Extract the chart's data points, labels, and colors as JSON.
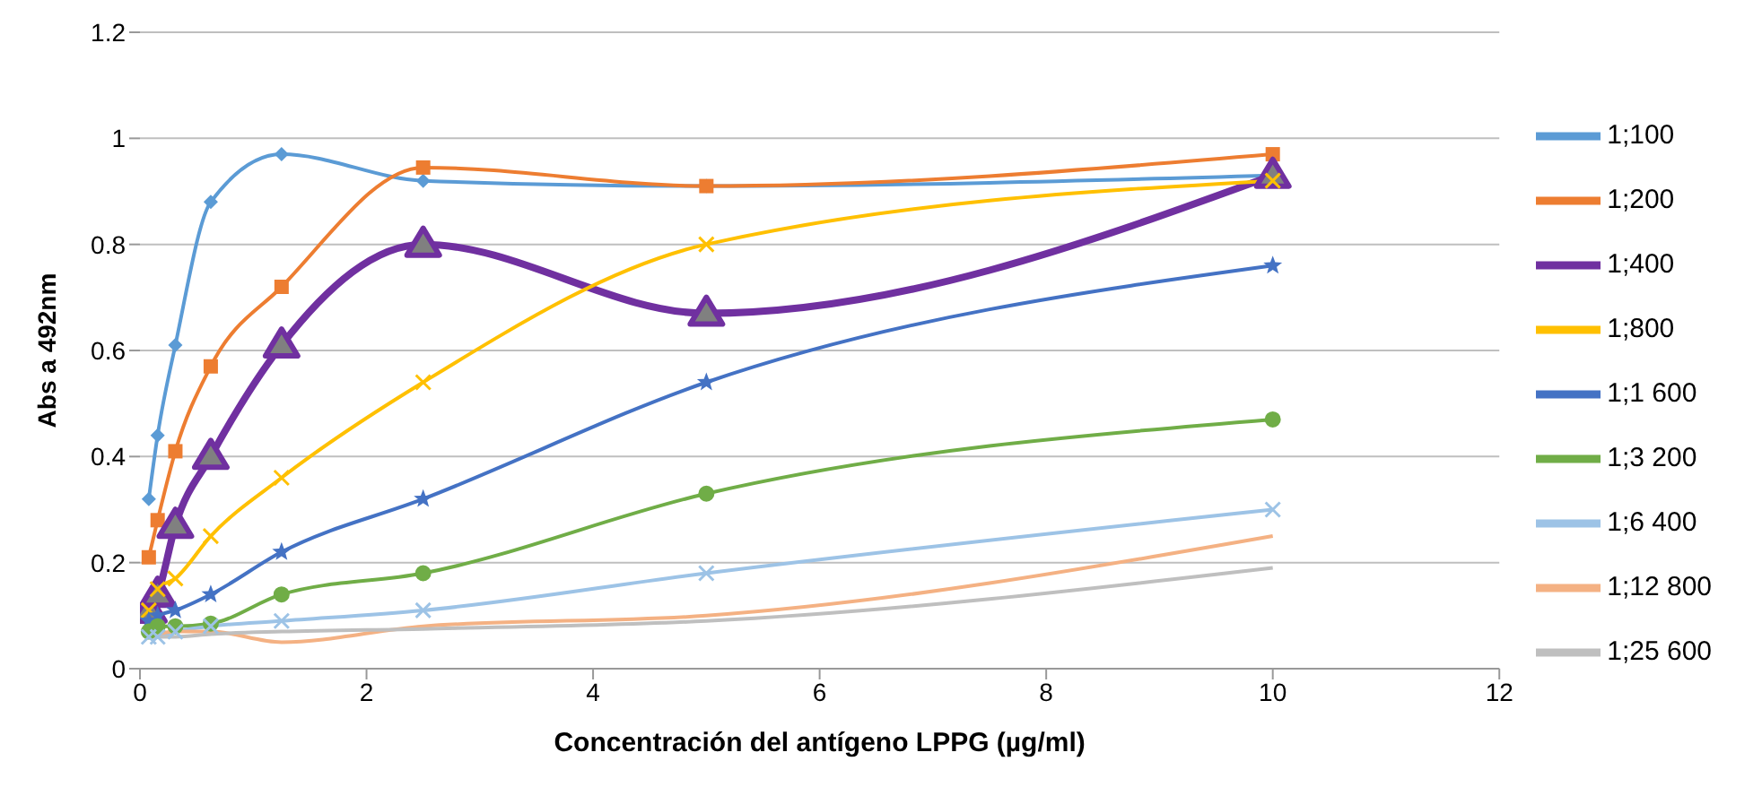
{
  "chart_data": {
    "type": "line",
    "xlabel": "Concentración del antígeno LPPG (µg/ml)",
    "ylabel": "Abs a 492nm",
    "x": [
      0.078,
      0.156,
      0.3125,
      0.625,
      1.25,
      2.5,
      5,
      10
    ],
    "xlim": [
      0,
      12
    ],
    "xticks": [
      0,
      2,
      4,
      6,
      8,
      10,
      12
    ],
    "ylim": [
      0,
      1.2
    ],
    "yticks": [
      0,
      0.2,
      0.4,
      0.6,
      0.8,
      1,
      1.2
    ],
    "grid": "y",
    "legend": "right",
    "line_style": "solid",
    "series": [
      {
        "name": "1;100",
        "color": "#5b9bd5",
        "marker": "diamond",
        "values": [
          0.32,
          0.44,
          0.61,
          0.88,
          0.97,
          0.92,
          0.91,
          0.93
        ]
      },
      {
        "name": "1;200",
        "color": "#ed7d31",
        "marker": "square",
        "values": [
          0.21,
          0.28,
          0.41,
          0.57,
          0.72,
          0.945,
          0.91,
          0.97
        ]
      },
      {
        "name": "1;400",
        "color": "#7030a0",
        "marker": "triangle",
        "values": [
          0.11,
          0.14,
          0.27,
          0.4,
          0.61,
          0.8,
          0.67,
          0.93
        ]
      },
      {
        "name": "1;800",
        "color": "#ffc000",
        "marker": "cross",
        "values": [
          0.11,
          0.15,
          0.17,
          0.25,
          0.36,
          0.54,
          0.8,
          0.92
        ]
      },
      {
        "name": "1;1 600",
        "color": "#4472c4",
        "marker": "star",
        "values": [
          0.09,
          0.1,
          0.11,
          0.14,
          0.22,
          0.32,
          0.54,
          0.76
        ]
      },
      {
        "name": "1;3 200",
        "color": "#70ad47",
        "marker": "circle",
        "values": [
          0.07,
          0.08,
          0.08,
          0.085,
          0.14,
          0.18,
          0.33,
          0.47
        ]
      },
      {
        "name": "1;6 400",
        "color": "#9dc3e6",
        "marker": "cross",
        "values": [
          0.06,
          0.06,
          0.07,
          0.08,
          0.09,
          0.11,
          0.18,
          0.3
        ]
      },
      {
        "name": "1;12 800",
        "color": "#f4b183",
        "marker": "none",
        "values": [
          0.06,
          0.065,
          0.07,
          0.07,
          0.05,
          0.08,
          0.1,
          0.25
        ]
      },
      {
        "name": "1;25 600",
        "color": "#bfbfbf",
        "marker": "none",
        "values": [
          0.06,
          0.06,
          0.06,
          0.065,
          0.07,
          0.075,
          0.09,
          0.19
        ]
      }
    ]
  }
}
